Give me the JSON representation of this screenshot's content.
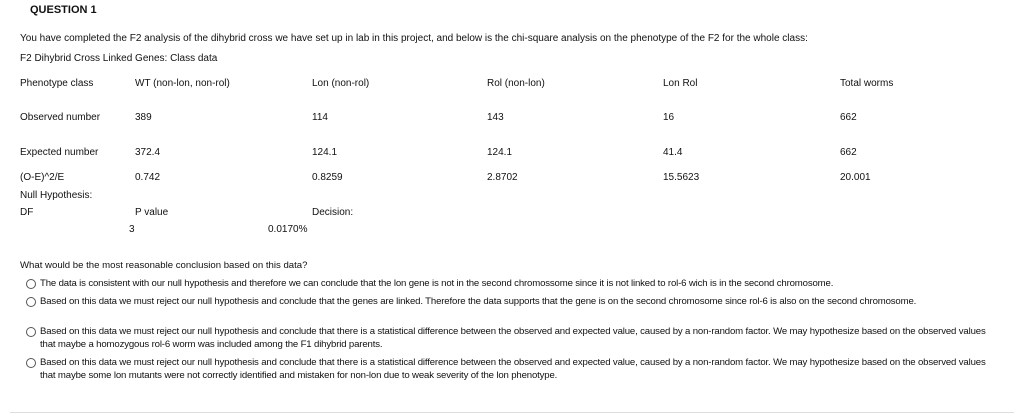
{
  "title": "QUESTION 1",
  "intro": "You have completed the F2 analysis of the dihybrid cross we have set up in lab in this project, and below is the chi-square analysis on the phenotype of the F2 for the whole class:",
  "subtitle": "F2 Dihybrid Cross Linked Genes:  Class data",
  "table": {
    "header": [
      "Phenotype class",
      "WT (non-lon, non-rol)",
      "Lon (non-rol)",
      "Rol (non-lon)",
      "Lon Rol",
      "Total worms"
    ],
    "rows": [
      [
        "Observed number",
        "389",
        "114",
        "143",
        "16",
        "662"
      ],
      [
        "Expected number",
        "372.4",
        "124.1",
        "124.1",
        "41.4",
        "662"
      ],
      [
        "(O-E)^2/E",
        "0.742",
        "0.8259",
        "2.8702",
        "15.5623",
        "20.001"
      ]
    ]
  },
  "null_hypothesis": "Null Hypothesis:",
  "df_label": "DF",
  "p_label": "P value",
  "decision_label": "Decision:",
  "df_value": "3",
  "p_value": "0.0170%",
  "question": "What would be the most reasonable conclusion based on this data?",
  "options": [
    "The data is consistent with our null hypothesis and therefore we can conclude that the lon gene is not in the second chromossome since it is not linked to rol-6 wich is in the second chromosome.",
    "Based on this data we must reject our null hypothesis and conclude that the genes are linked. Therefore the data supports that the gene is on the second chromosome since rol-6 is also on the second chromosome.",
    "Based on this data we must reject our null hypothesis and conclude that there is a statistical difference between the observed and expected value, caused by a non-random factor. We may hypothesize based on the observed values that maybe a homozygous rol-6 worm was included among the F1 dihybrid parents.",
    "Based on this data we must reject our null hypothesis and conclude that there is a statistical difference between the observed and expected value, caused by a non-random factor. We may hypothesize based on the observed values that maybe some lon mutants were not correctly identified and mistaken for non-lon due to weak severity of the lon phenotype."
  ]
}
